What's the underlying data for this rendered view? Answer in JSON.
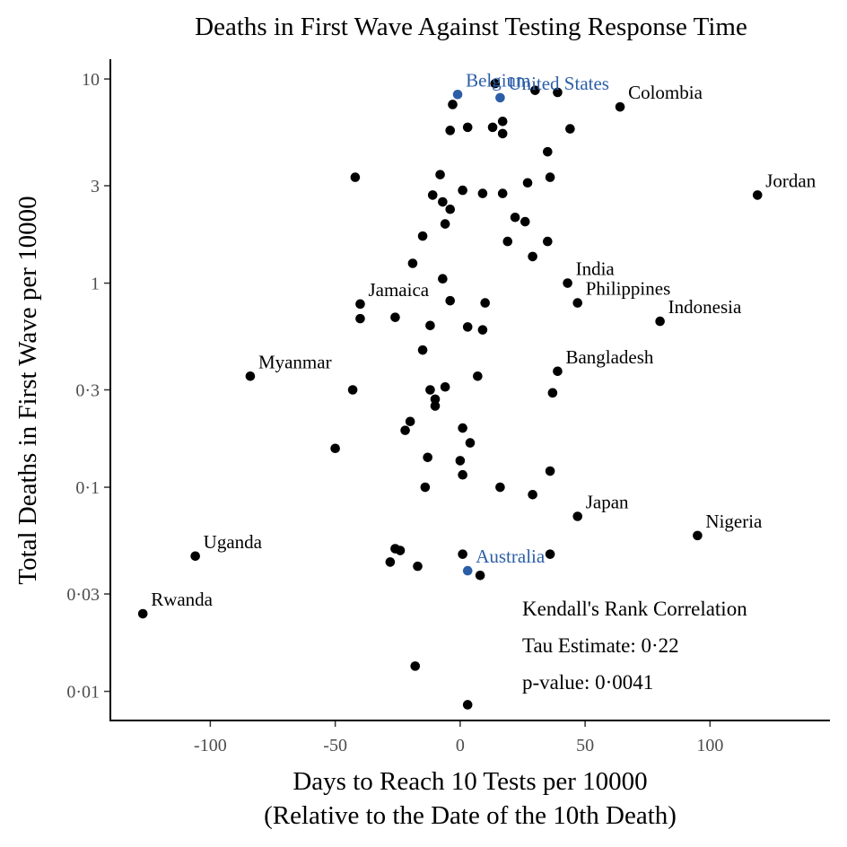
{
  "chart_data": {
    "type": "scatter",
    "title": "Deaths in First Wave Against Testing Response Time",
    "xlabel": [
      "Days to Reach 10 Tests per 10000",
      "(Relative to the Date of the 10th Death)"
    ],
    "ylabel": "Total Deaths in First Wave per 10000",
    "xlim": [
      -140,
      148
    ],
    "ylim": [
      0.0072,
      12.5
    ],
    "yscale": "log",
    "xticks": [
      -100,
      -50,
      0,
      50,
      100
    ],
    "xtick_labels": [
      "-100",
      "-50",
      "0",
      "50",
      "100"
    ],
    "yticks": [
      0.01,
      0.03,
      0.1,
      0.3,
      1,
      3,
      10
    ],
    "ytick_labels": [
      "0·01",
      "0·03",
      "0·1",
      "0·3",
      "1",
      "3",
      "10"
    ],
    "grid": false,
    "colors": {
      "point": "#000000",
      "highlight": "#2c5ea8"
    },
    "annotation": {
      "lines": [
        "Kendall's Rank Correlation",
        "Tau Estimate: 0·22",
        "p-value: 0·0041"
      ]
    },
    "labeled_points": [
      {
        "label": "Belgium",
        "x": -1,
        "y": 8.4,
        "highlight": true
      },
      {
        "label": "United States",
        "x": 16,
        "y": 8.1,
        "highlight": true
      },
      {
        "label": "Australia",
        "x": 3,
        "y": 0.039,
        "highlight": true
      },
      {
        "label": "Colombia",
        "x": 64,
        "y": 7.3,
        "highlight": false
      },
      {
        "label": "Jordan",
        "x": 119,
        "y": 2.7,
        "highlight": false
      },
      {
        "label": "India",
        "x": 43,
        "y": 1.0,
        "highlight": false
      },
      {
        "label": "Philippines",
        "x": 47,
        "y": 0.8,
        "highlight": false
      },
      {
        "label": "Indonesia",
        "x": 80,
        "y": 0.65,
        "highlight": false
      },
      {
        "label": "Jamaica",
        "x": -40,
        "y": 0.79,
        "highlight": false
      },
      {
        "label": "Bangladesh",
        "x": 39,
        "y": 0.37,
        "highlight": false
      },
      {
        "label": "Myanmar",
        "x": -84,
        "y": 0.35,
        "highlight": false
      },
      {
        "label": "Japan",
        "x": 47,
        "y": 0.072,
        "highlight": false
      },
      {
        "label": "Nigeria",
        "x": 95,
        "y": 0.058,
        "highlight": false
      },
      {
        "label": "Uganda",
        "x": -106,
        "y": 0.046,
        "highlight": false
      },
      {
        "label": "Rwanda",
        "x": -127,
        "y": 0.024,
        "highlight": false
      }
    ],
    "points": [
      [
        14,
        9.5
      ],
      [
        30,
        8.8
      ],
      [
        39,
        8.6
      ],
      [
        -3,
        7.5
      ],
      [
        17,
        6.2
      ],
      [
        3,
        5.8
      ],
      [
        13,
        5.8
      ],
      [
        44,
        5.7
      ],
      [
        -4,
        5.6
      ],
      [
        17,
        5.4
      ],
      [
        35,
        4.4
      ],
      [
        -42,
        3.3
      ],
      [
        -8,
        3.4
      ],
      [
        36,
        3.3
      ],
      [
        27,
        3.1
      ],
      [
        -11,
        2.7
      ],
      [
        1,
        2.85
      ],
      [
        9,
        2.75
      ],
      [
        17,
        2.75
      ],
      [
        -7,
        2.5
      ],
      [
        -4,
        2.3
      ],
      [
        22,
        2.1
      ],
      [
        26,
        2.0
      ],
      [
        -6,
        1.95
      ],
      [
        -15,
        1.7
      ],
      [
        19,
        1.6
      ],
      [
        35,
        1.6
      ],
      [
        29,
        1.35
      ],
      [
        -19,
        1.25
      ],
      [
        -7,
        1.05
      ],
      [
        -4,
        0.82
      ],
      [
        10,
        0.8
      ],
      [
        -40,
        0.67
      ],
      [
        -26,
        0.68
      ],
      [
        -12,
        0.62
      ],
      [
        3,
        0.61
      ],
      [
        9,
        0.59
      ],
      [
        -15,
        0.47
      ],
      [
        7,
        0.35
      ],
      [
        -6,
        0.31
      ],
      [
        -12,
        0.3
      ],
      [
        37,
        0.29
      ],
      [
        -43,
        0.3
      ],
      [
        -10,
        0.27
      ],
      [
        -10,
        0.25
      ],
      [
        -20,
        0.21
      ],
      [
        -22,
        0.19
      ],
      [
        1,
        0.195
      ],
      [
        4,
        0.165
      ],
      [
        -50,
        0.155
      ],
      [
        -13,
        0.14
      ],
      [
        0,
        0.135
      ],
      [
        36,
        0.12
      ],
      [
        1,
        0.115
      ],
      [
        -14,
        0.1
      ],
      [
        16,
        0.1
      ],
      [
        29,
        0.092
      ],
      [
        36,
        0.047
      ],
      [
        1,
        0.047
      ],
      [
        -26,
        0.05
      ],
      [
        -24,
        0.049
      ],
      [
        -28,
        0.043
      ],
      [
        -17,
        0.041
      ],
      [
        8,
        0.037
      ],
      [
        -18,
        0.0133
      ],
      [
        3,
        0.0086
      ]
    ]
  }
}
